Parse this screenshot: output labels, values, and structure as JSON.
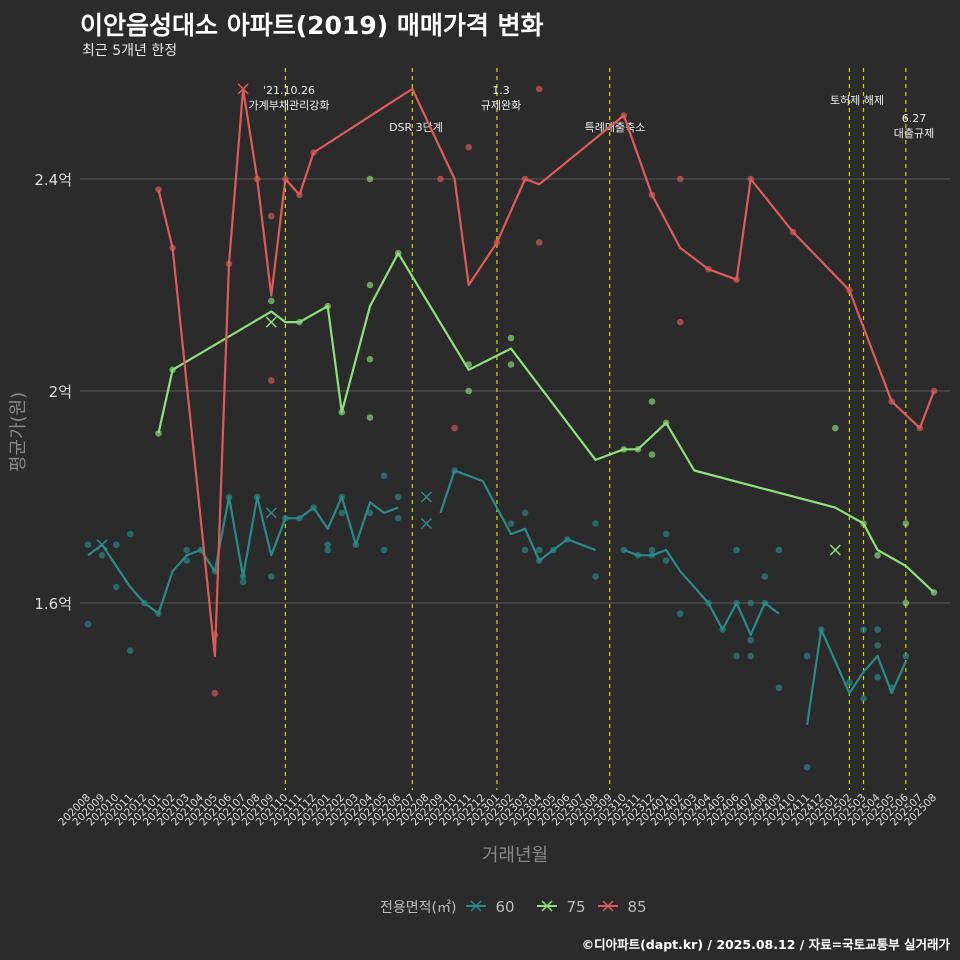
{
  "title": "이안음성대소 아파트(2019) 매매가격 변화",
  "subtitle": "최근 5개년 한정",
  "caption": "©디아파트(dapt.kr) / 2025.08.12 / 자료=국토교통부 실거래가",
  "colors": {
    "background": "#2b2b2b",
    "grid": "#5a5a5a",
    "event_line": "#d4d400",
    "s60": "#2a8a8a",
    "s75": "#8ee07a",
    "s85": "#e05a5a"
  },
  "chart_data": {
    "type": "line",
    "title": "이안음성대소 아파트(2019) 매매가격 변화",
    "subtitle": "최근 5개년 한정",
    "xlabel": "거래년월",
    "ylabel": "평균가(원)",
    "ylim": [
      1.2,
      2.8
    ],
    "yticks": [
      1.6,
      2.0,
      2.4
    ],
    "ytick_labels": [
      "1.6억",
      "2억",
      "2.4억"
    ],
    "grid": true,
    "legend_title": "전용면적(㎡)",
    "legend_position": "bottom",
    "categories": [
      "202008",
      "202009",
      "202010",
      "202011",
      "202012",
      "202101",
      "202102",
      "202103",
      "202104",
      "202105",
      "202106",
      "202107",
      "202108",
      "202109",
      "202110",
      "202111",
      "202112",
      "202201",
      "202202",
      "202203",
      "202204",
      "202205",
      "202206",
      "202207",
      "202208",
      "202209",
      "202210",
      "202211",
      "202212",
      "202301",
      "202302",
      "202303",
      "202304",
      "202305",
      "202306",
      "202307",
      "202308",
      "202309",
      "202310",
      "202311",
      "202312",
      "202401",
      "202402",
      "202403",
      "202404",
      "202405",
      "202406",
      "202407",
      "202408",
      "202409",
      "202410",
      "202411",
      "202412",
      "202501",
      "202502",
      "202503",
      "202504",
      "202505",
      "202506",
      "202507",
      "202508"
    ],
    "events": [
      {
        "date": "202110",
        "label": "'21.10.26\n가계부채관리강화"
      },
      {
        "date": "202207",
        "label": "DSR 3단계"
      },
      {
        "date": "202301",
        "label": "1.3\n규제완화"
      },
      {
        "date": "202309",
        "label": "특례대출축소"
      },
      {
        "date": "202502",
        "label": "토허제 해제"
      },
      {
        "date": "202503",
        "label": ""
      },
      {
        "date": "202506",
        "label": "6.27\n대출규제"
      }
    ],
    "series": [
      {
        "name": "60",
        "color": "#2a8a8a",
        "line": [
          [
            "202008",
            1.69
          ],
          [
            "202009",
            1.71
          ],
          [
            "202010",
            1.67
          ],
          [
            "202011",
            1.63
          ],
          [
            "202012",
            1.6
          ],
          [
            "202101",
            1.58
          ],
          [
            "202102",
            1.66
          ],
          [
            "202103",
            1.69
          ],
          [
            "202104",
            1.7
          ],
          [
            "202105",
            1.66
          ],
          [
            "202106",
            1.8
          ],
          [
            "202107",
            1.65
          ],
          [
            "202108",
            1.8
          ],
          [
            "202109",
            1.69
          ],
          [
            "202110",
            1.76
          ],
          [
            "202111",
            1.76
          ],
          [
            "202112",
            1.78
          ],
          [
            "202201",
            1.74
          ],
          [
            "202202",
            1.8
          ],
          [
            "202203",
            1.71
          ],
          [
            "202204",
            1.79
          ],
          [
            "202205",
            1.77
          ],
          [
            "202206",
            1.78
          ],
          null,
          [
            "202209",
            1.77
          ],
          [
            "202210",
            1.85
          ],
          [
            "202212",
            1.83
          ],
          [
            "202302",
            1.73
          ],
          [
            "202303",
            1.74
          ],
          [
            "202304",
            1.68
          ],
          [
            "202305",
            1.7
          ],
          [
            "202306",
            1.72
          ],
          [
            "202307",
            1.71
          ],
          [
            "202308",
            1.7
          ],
          null,
          [
            "202310",
            1.7
          ],
          [
            "202311",
            1.69
          ],
          [
            "202312",
            1.69
          ],
          [
            "202401",
            1.7
          ],
          [
            "202402",
            1.66
          ],
          [
            "202403",
            1.63
          ],
          [
            "202404",
            1.6
          ],
          [
            "202405",
            1.55
          ],
          [
            "202406",
            1.6
          ],
          [
            "202407",
            1.54
          ],
          [
            "202408",
            1.6
          ],
          [
            "202409",
            1.58
          ],
          null,
          [
            "202411",
            1.37
          ],
          [
            "202412",
            1.55
          ],
          [
            "202502",
            1.43
          ],
          [
            "202503",
            1.47
          ],
          [
            "202504",
            1.5
          ],
          [
            "202505",
            1.43
          ],
          [
            "202506",
            1.49
          ]
        ],
        "points": [
          [
            "202008",
            1.56
          ],
          [
            "202008",
            1.71
          ],
          [
            "202009",
            1.69
          ],
          [
            "202010",
            1.71
          ],
          [
            "202010",
            1.63
          ],
          [
            "202011",
            1.73
          ],
          [
            "202011",
            1.51
          ],
          [
            "202012",
            1.6
          ],
          [
            "202101",
            1.58
          ],
          [
            "202103",
            1.7
          ],
          [
            "202103",
            1.68
          ],
          [
            "202104",
            1.7
          ],
          [
            "202105",
            1.66
          ],
          [
            "202106",
            1.8
          ],
          [
            "202107",
            1.64
          ],
          [
            "202107",
            1.65
          ],
          [
            "202108",
            1.8
          ],
          [
            "202109",
            1.65
          ],
          [
            "202110",
            1.76
          ],
          [
            "202111",
            1.76
          ],
          [
            "202112",
            1.78
          ],
          [
            "202201",
            1.7
          ],
          [
            "202201",
            1.71
          ],
          [
            "202202",
            1.8
          ],
          [
            "202202",
            1.77
          ],
          [
            "202203",
            1.71
          ],
          [
            "202204",
            1.77
          ],
          [
            "202205",
            1.84
          ],
          [
            "202205",
            1.7
          ],
          [
            "202206",
            1.8
          ],
          [
            "202206",
            1.76
          ],
          [
            "202210",
            1.85
          ],
          [
            "202302",
            1.75
          ],
          [
            "202303",
            1.77
          ],
          [
            "202303",
            1.7
          ],
          [
            "202304",
            1.7
          ],
          [
            "202304",
            1.68
          ],
          [
            "202305",
            1.7
          ],
          [
            "202306",
            1.72
          ],
          [
            "202308",
            1.75
          ],
          [
            "202308",
            1.65
          ],
          [
            "202310",
            1.7
          ],
          [
            "202311",
            1.69
          ],
          [
            "202312",
            1.69
          ],
          [
            "202312",
            1.7
          ],
          [
            "202401",
            1.73
          ],
          [
            "202401",
            1.68
          ],
          [
            "202402",
            1.58
          ],
          [
            "202404",
            1.6
          ],
          [
            "202405",
            1.55
          ],
          [
            "202406",
            1.7
          ],
          [
            "202406",
            1.6
          ],
          [
            "202406",
            1.5
          ],
          [
            "202407",
            1.6
          ],
          [
            "202407",
            1.53
          ],
          [
            "202407",
            1.5
          ],
          [
            "202408",
            1.65
          ],
          [
            "202408",
            1.6
          ],
          [
            "202409",
            1.7
          ],
          [
            "202409",
            1.44
          ],
          [
            "202411",
            1.5
          ],
          [
            "202411",
            1.29
          ],
          [
            "202412",
            1.55
          ],
          [
            "202502",
            1.45
          ],
          [
            "202503",
            1.55
          ],
          [
            "202503",
            1.42
          ],
          [
            "202504",
            1.55
          ],
          [
            "202504",
            1.52
          ],
          [
            "202504",
            1.46
          ],
          [
            "202505",
            1.44
          ],
          [
            "202506",
            1.5
          ]
        ],
        "crosses": [
          [
            "202009",
            1.71
          ],
          [
            "202109",
            1.77
          ],
          [
            "202208",
            1.8
          ],
          [
            "202208",
            1.75
          ]
        ]
      },
      {
        "name": "75",
        "color": "#8ee07a",
        "line": [
          [
            "202101",
            1.92
          ],
          [
            "202102",
            2.04
          ],
          [
            "202109",
            2.15
          ],
          [
            "202110",
            2.13
          ],
          [
            "202111",
            2.13
          ],
          [
            "202201",
            2.16
          ],
          [
            "202202",
            1.96
          ],
          [
            "202204",
            2.16
          ],
          [
            "202206",
            2.26
          ],
          [
            "202211",
            2.04
          ],
          [
            "202302",
            2.08
          ],
          [
            "202308",
            1.87
          ],
          [
            "202310",
            1.89
          ],
          [
            "202311",
            1.89
          ],
          [
            "202401",
            1.94
          ],
          [
            "202403",
            1.85
          ],
          [
            "202501",
            1.78
          ],
          [
            "202503",
            1.75
          ],
          [
            "202504",
            1.7
          ],
          [
            "202506",
            1.67
          ],
          [
            "202508",
            1.62
          ]
        ],
        "points": [
          [
            "202101",
            1.92
          ],
          [
            "202102",
            2.04
          ],
          [
            "202109",
            2.17
          ],
          [
            "202111",
            2.13
          ],
          [
            "202201",
            2.16
          ],
          [
            "202202",
            1.96
          ],
          [
            "202204",
            2.4
          ],
          [
            "202204",
            2.2
          ],
          [
            "202204",
            2.06
          ],
          [
            "202204",
            1.95
          ],
          [
            "202206",
            2.26
          ],
          [
            "202211",
            2.05
          ],
          [
            "202211",
            2.0
          ],
          [
            "202302",
            2.1
          ],
          [
            "202302",
            2.05
          ],
          [
            "202310",
            1.89
          ],
          [
            "202311",
            1.89
          ],
          [
            "202312",
            1.98
          ],
          [
            "202312",
            1.88
          ],
          [
            "202401",
            1.94
          ],
          [
            "202501",
            1.93
          ],
          [
            "202503",
            1.75
          ],
          [
            "202504",
            1.69
          ],
          [
            "202506",
            1.75
          ],
          [
            "202506",
            1.6
          ],
          [
            "202508",
            1.62
          ]
        ],
        "crosses": [
          [
            "202109",
            2.13
          ],
          [
            "202501",
            1.7
          ]
        ]
      },
      {
        "name": "85",
        "color": "#e05a5a",
        "line": [
          [
            "202101",
            2.38
          ],
          [
            "202102",
            2.27
          ],
          [
            "202105",
            1.5
          ],
          [
            "202106",
            2.24
          ],
          [
            "202107",
            2.57
          ],
          [
            "202108",
            2.4
          ],
          [
            "202109",
            2.18
          ],
          [
            "202110",
            2.4
          ],
          [
            "202111",
            2.37
          ],
          [
            "202112",
            2.45
          ],
          [
            "202207",
            2.57
          ],
          [
            "202210",
            2.4
          ],
          [
            "202211",
            2.2
          ],
          [
            "202301",
            2.28
          ],
          [
            "202303",
            2.4
          ],
          [
            "202304",
            2.39
          ],
          [
            "202310",
            2.52
          ],
          [
            "202312",
            2.37
          ],
          [
            "202402",
            2.27
          ],
          [
            "202404",
            2.23
          ],
          [
            "202406",
            2.21
          ],
          [
            "202407",
            2.4
          ],
          [
            "202410",
            2.3
          ],
          [
            "202502",
            2.19
          ],
          [
            "202505",
            1.98
          ],
          [
            "202507",
            1.93
          ],
          [
            "202508",
            2.0
          ]
        ],
        "points": [
          [
            "202101",
            2.38
          ],
          [
            "202102",
            2.27
          ],
          [
            "202105",
            1.54
          ],
          [
            "202105",
            1.43
          ],
          [
            "202106",
            2.24
          ],
          [
            "202108",
            2.4
          ],
          [
            "202109",
            2.33
          ],
          [
            "202109",
            2.02
          ],
          [
            "202110",
            2.4
          ],
          [
            "202111",
            2.37
          ],
          [
            "202112",
            2.45
          ],
          [
            "202209",
            2.4
          ],
          [
            "202211",
            2.46
          ],
          [
            "202210",
            1.93
          ],
          [
            "202301",
            2.28
          ],
          [
            "202303",
            2.4
          ],
          [
            "202304",
            2.28
          ],
          [
            "202304",
            2.57
          ],
          [
            "202310",
            2.52
          ],
          [
            "202312",
            2.37
          ],
          [
            "202402",
            2.13
          ],
          [
            "202402",
            2.4
          ],
          [
            "202404",
            2.23
          ],
          [
            "202406",
            2.21
          ],
          [
            "202407",
            2.4
          ],
          [
            "202410",
            2.3
          ],
          [
            "202502",
            2.19
          ],
          [
            "202505",
            1.98
          ],
          [
            "202507",
            1.93
          ],
          [
            "202508",
            2.0
          ]
        ],
        "crosses": [
          [
            "202107",
            2.57
          ]
        ]
      }
    ]
  }
}
